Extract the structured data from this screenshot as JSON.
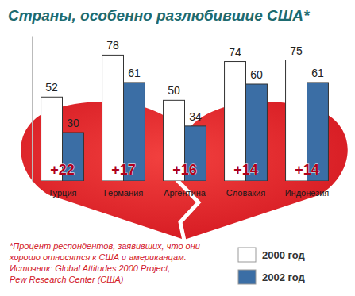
{
  "chart_data": {
    "type": "bar",
    "title": "Страны, особенно разлюбившие США*",
    "categories": [
      "Турция",
      "Германия",
      "Аргентина",
      "Словакия",
      "Индонезия"
    ],
    "series": [
      {
        "name": "2000 год",
        "color": "#ffffff",
        "values": [
          52,
          78,
          50,
          74,
          75
        ]
      },
      {
        "name": "2002 год",
        "color": "#3b6ea5",
        "values": [
          30,
          61,
          34,
          60,
          61
        ]
      }
    ],
    "annotations": [
      "+22",
      "+17",
      "+16",
      "+14",
      "+14"
    ],
    "footnote": [
      "*Процент респондентов, заявивших, что они",
      "хорошо относятся к США и американцам.",
      "Источник: Global Attitudes 2000 Project,",
      "Pew Research Center (США)"
    ],
    "ylim": [
      0,
      90
    ],
    "yticks": [],
    "tick_labels": false,
    "data_labels": true,
    "grid": false,
    "legend": "lower right"
  }
}
